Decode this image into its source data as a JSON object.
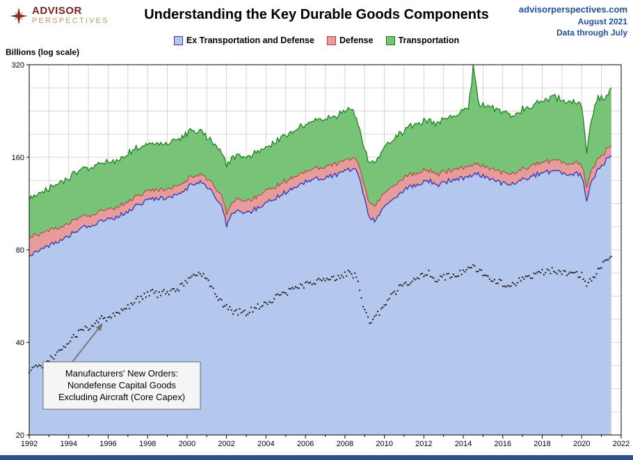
{
  "header": {
    "logo_line1": "ADVISOR",
    "logo_line2": "PERSPECTIVES",
    "title": "Understanding the Key Durable Goods Components",
    "site": "advisorperspectives.com",
    "date": "August 2021",
    "data_through": "Data through July"
  },
  "y_axis_label": "Billions (log scale)",
  "legend": {
    "items": [
      {
        "label": "Ex Transportation and Defense",
        "fill": "#b4c7ed",
        "stroke": "#3232b4"
      },
      {
        "label": "Defense",
        "fill": "#e89b9b",
        "stroke": "#b43c3c"
      },
      {
        "label": "Transportation",
        "fill": "#77c377",
        "stroke": "#177a17"
      }
    ]
  },
  "annotation": {
    "lines": [
      "Manufacturers' New Orders:",
      "Nondefense Capital Goods",
      "Excluding Aircraft (Core Capex)"
    ]
  },
  "footer_bar_color": "#2e4e8f",
  "chart_data": {
    "type": "area",
    "stacked": true,
    "title": "Understanding the Key Durable Goods Components",
    "ylabel": "Billions (log scale)",
    "y_scale": "log",
    "grid": true,
    "legend_position": "top",
    "legend": [
      "Ex Transportation and Defense",
      "Defense",
      "Transportation"
    ],
    "annotation": "Manufacturers' New Orders: Nondefense Capital Goods Excluding Aircraft (Core Capex)",
    "xlim": [
      1992,
      2022
    ],
    "ylim": [
      20,
      320
    ],
    "yticks": [
      20,
      40,
      80,
      160,
      320
    ],
    "xticks": [
      1992,
      1994,
      1996,
      1998,
      2000,
      2002,
      2004,
      2006,
      2008,
      2010,
      2012,
      2014,
      2016,
      2018,
      2020,
      2022
    ],
    "x_start": 1992,
    "x_step": 0.25,
    "x_end": 2021.5,
    "series": [
      {
        "name": "Ex Transportation and Defense",
        "values": [
          76,
          78,
          79,
          81,
          82,
          84,
          85,
          87,
          89,
          91,
          93,
          95,
          96,
          97,
          98,
          99,
          100,
          101,
          103,
          105,
          107,
          110,
          112,
          114,
          116,
          117,
          117,
          118,
          118,
          119,
          121,
          124,
          127,
          130,
          133,
          132,
          128,
          124,
          118,
          112,
          96,
          106,
          107,
          107,
          106,
          107,
          109,
          111,
          113,
          116,
          118,
          121,
          123,
          126,
          128,
          131,
          133,
          135,
          136,
          137,
          138,
          139,
          140,
          142,
          144,
          146,
          147,
          138,
          116,
          102,
          100,
          104,
          110,
          115,
          119,
          122,
          125,
          128,
          130,
          131,
          133,
          134,
          132,
          130,
          132,
          134,
          135,
          136,
          137,
          139,
          140,
          141,
          139,
          137,
          135,
          133,
          131,
          131,
          132,
          133,
          135,
          137,
          139,
          141,
          142,
          143,
          144,
          144,
          143,
          142,
          141,
          141,
          139,
          117,
          132,
          143,
          150,
          157,
          165
        ]
      },
      {
        "name": "Defense",
        "values": [
          11,
          11,
          10,
          10,
          10,
          10,
          9,
          9,
          9,
          9,
          9,
          8,
          8,
          8,
          8,
          8,
          8,
          8,
          8,
          8,
          8,
          8,
          8,
          8,
          8,
          8,
          8,
          8,
          8,
          8,
          8,
          8,
          8,
          8,
          8,
          8,
          8,
          9,
          9,
          9,
          9,
          9,
          10,
          10,
          10,
          10,
          10,
          11,
          11,
          11,
          11,
          11,
          11,
          11,
          11,
          11,
          11,
          11,
          11,
          12,
          12,
          12,
          12,
          12,
          12,
          12,
          12,
          12,
          12,
          12,
          12,
          12,
          12,
          12,
          12,
          12,
          12,
          12,
          12,
          12,
          12,
          11,
          11,
          11,
          11,
          11,
          11,
          11,
          11,
          11,
          11,
          11,
          11,
          11,
          11,
          11,
          11,
          11,
          11,
          11,
          11,
          11,
          12,
          12,
          12,
          12,
          12,
          12,
          12,
          12,
          12,
          12,
          12,
          12,
          12,
          12,
          12,
          12,
          12
        ]
      },
      {
        "name": "Transportation",
        "values": [
          30,
          31,
          32,
          33,
          34,
          36,
          37,
          38,
          40,
          42,
          43,
          44,
          44,
          45,
          45,
          46,
          46,
          47,
          48,
          49,
          50,
          51,
          52,
          52,
          53,
          52,
          51,
          52,
          52,
          53,
          54,
          55,
          55,
          56,
          54,
          52,
          50,
          48,
          46,
          45,
          46,
          45,
          44,
          45,
          44,
          45,
          46,
          47,
          48,
          50,
          52,
          54,
          55,
          57,
          58,
          59,
          60,
          62,
          63,
          64,
          64,
          66,
          67,
          68,
          69,
          70,
          62,
          50,
          42,
          40,
          42,
          45,
          48,
          52,
          55,
          57,
          58,
          60,
          62,
          64,
          65,
          66,
          65,
          66,
          68,
          70,
          72,
          74,
          76,
          80,
          160,
          90,
          88,
          86,
          84,
          82,
          80,
          79,
          80,
          81,
          82,
          84,
          86,
          88,
          90,
          92,
          93,
          94,
          95,
          92,
          90,
          88,
          85,
          38,
          70,
          90,
          92,
          78,
          95
        ]
      }
    ],
    "line_series": {
      "name": "Manufacturers' New Orders: Nondefense Capital Goods Excluding Aircraft (Core Capex)",
      "style": "dotted",
      "values": [
        32,
        33,
        33,
        34,
        35,
        36,
        37,
        38,
        40,
        42,
        43,
        44,
        45,
        46,
        47,
        48,
        48,
        49,
        50,
        51,
        52,
        54,
        55,
        56,
        57,
        58,
        57,
        58,
        58,
        59,
        60,
        61,
        63,
        65,
        66,
        67,
        65,
        61,
        57,
        54,
        52,
        51,
        50,
        51,
        50,
        51,
        52,
        53,
        54,
        55,
        56,
        57,
        58,
        59,
        60,
        61,
        62,
        63,
        63,
        64,
        64,
        65,
        65,
        66,
        67,
        67,
        66,
        60,
        50,
        47,
        48,
        50,
        53,
        56,
        58,
        60,
        61,
        63,
        64,
        65,
        66,
        67,
        65,
        64,
        65,
        66,
        66,
        67,
        68,
        69,
        70,
        69,
        67,
        65,
        64,
        63,
        62,
        62,
        62,
        63,
        64,
        65,
        66,
        67,
        68,
        68,
        69,
        68,
        68,
        67,
        67,
        67,
        66,
        61,
        64,
        68,
        71,
        74,
        77
      ]
    }
  }
}
